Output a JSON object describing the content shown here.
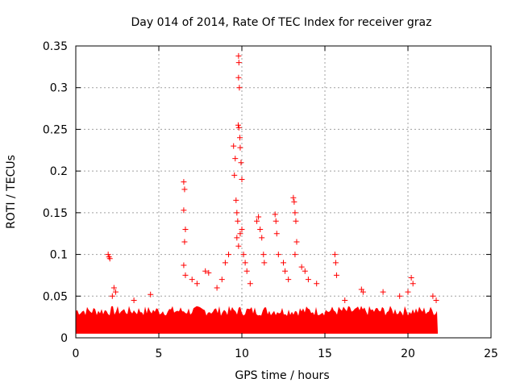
{
  "chart_data": {
    "type": "scatter",
    "title": "Day 014 of 2014, Rate Of TEC Index for receiver graz",
    "xlabel": "GPS time / hours",
    "ylabel": "ROTI / TECUs",
    "xlim": [
      0,
      25
    ],
    "ylim": [
      0,
      0.35
    ],
    "xticks": [
      0,
      5,
      10,
      15,
      20,
      25
    ],
    "yticks": [
      0,
      0.05,
      0.1,
      0.15,
      0.2,
      0.25,
      0.3,
      0.35
    ],
    "grid": true,
    "marker": "+",
    "color": "#ff0000",
    "background_band": {
      "x_start": 0,
      "x_end": 21.8,
      "y_low": 0.005,
      "y_high": 0.03
    },
    "points": [
      [
        1.95,
        0.1
      ],
      [
        2.0,
        0.097
      ],
      [
        2.05,
        0.095
      ],
      [
        2.2,
        0.05
      ],
      [
        2.3,
        0.06
      ],
      [
        2.4,
        0.055
      ],
      [
        3.5,
        0.045
      ],
      [
        4.5,
        0.052
      ],
      [
        6.5,
        0.187
      ],
      [
        6.55,
        0.178
      ],
      [
        6.5,
        0.153
      ],
      [
        6.6,
        0.13
      ],
      [
        6.55,
        0.115
      ],
      [
        6.5,
        0.087
      ],
      [
        6.6,
        0.075
      ],
      [
        7.0,
        0.07
      ],
      [
        7.3,
        0.065
      ],
      [
        7.8,
        0.08
      ],
      [
        8.0,
        0.078
      ],
      [
        8.5,
        0.06
      ],
      [
        8.8,
        0.07
      ],
      [
        9.0,
        0.09
      ],
      [
        9.2,
        0.1
      ],
      [
        9.5,
        0.23
      ],
      [
        9.6,
        0.215
      ],
      [
        9.55,
        0.195
      ],
      [
        9.65,
        0.165
      ],
      [
        9.7,
        0.15
      ],
      [
        9.75,
        0.14
      ],
      [
        9.8,
        0.338
      ],
      [
        9.82,
        0.33
      ],
      [
        9.8,
        0.312
      ],
      [
        9.85,
        0.3
      ],
      [
        9.78,
        0.255
      ],
      [
        9.82,
        0.252
      ],
      [
        9.88,
        0.24
      ],
      [
        9.9,
        0.228
      ],
      [
        9.95,
        0.21
      ],
      [
        10.0,
        0.19
      ],
      [
        9.7,
        0.12
      ],
      [
        9.8,
        0.11
      ],
      [
        9.9,
        0.125
      ],
      [
        10.0,
        0.13
      ],
      [
        10.1,
        0.1
      ],
      [
        10.2,
        0.09
      ],
      [
        10.3,
        0.08
      ],
      [
        10.5,
        0.065
      ],
      [
        10.9,
        0.14
      ],
      [
        11.0,
        0.145
      ],
      [
        11.1,
        0.13
      ],
      [
        11.2,
        0.12
      ],
      [
        11.3,
        0.1
      ],
      [
        11.35,
        0.09
      ],
      [
        12.0,
        0.148
      ],
      [
        12.05,
        0.14
      ],
      [
        12.1,
        0.125
      ],
      [
        12.2,
        0.1
      ],
      [
        12.5,
        0.09
      ],
      [
        12.6,
        0.08
      ],
      [
        12.8,
        0.07
      ],
      [
        13.1,
        0.168
      ],
      [
        13.15,
        0.163
      ],
      [
        13.2,
        0.15
      ],
      [
        13.25,
        0.14
      ],
      [
        13.3,
        0.115
      ],
      [
        13.2,
        0.1
      ],
      [
        13.6,
        0.085
      ],
      [
        13.8,
        0.08
      ],
      [
        14.0,
        0.07
      ],
      [
        14.5,
        0.065
      ],
      [
        15.6,
        0.1
      ],
      [
        15.65,
        0.09
      ],
      [
        15.7,
        0.075
      ],
      [
        16.2,
        0.045
      ],
      [
        17.2,
        0.058
      ],
      [
        17.3,
        0.055
      ],
      [
        18.5,
        0.055
      ],
      [
        19.5,
        0.05
      ],
      [
        20.0,
        0.055
      ],
      [
        20.2,
        0.072
      ],
      [
        20.3,
        0.065
      ],
      [
        21.5,
        0.05
      ],
      [
        21.7,
        0.045
      ]
    ]
  }
}
